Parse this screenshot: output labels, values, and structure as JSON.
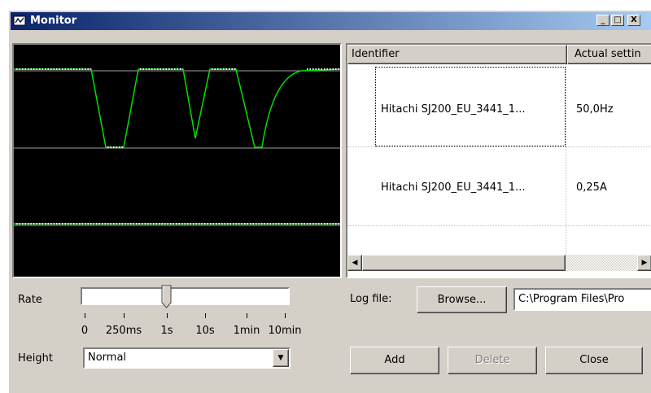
{
  "window": {
    "title": "Monitor"
  },
  "list": {
    "columns": [
      "Identifier",
      "Actual settin"
    ],
    "rows": [
      [
        "Hitachi SJ200_EU_3441_1...",
        "50,0Hz"
      ],
      [
        "Hitachi SJ200_EU_3441_1...",
        "0,25A"
      ]
    ]
  },
  "controls": {
    "rate_label": "Rate",
    "rate_ticks": [
      "0",
      "250ms",
      "1s",
      "10s",
      "1min",
      "10min"
    ],
    "height_label": "Height",
    "height_value": "Normal",
    "log_label": "Log file:",
    "browse": "Browse...",
    "log_path": "C:\\Program Files\\Pro",
    "buttons": [
      "Add",
      "Delete",
      "Close"
    ]
  }
}
